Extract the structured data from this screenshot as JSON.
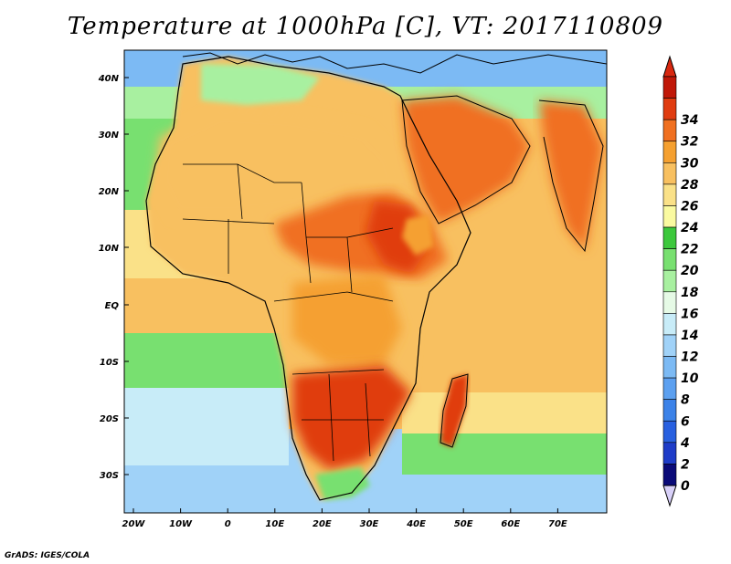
{
  "title": "Temperature at 1000hPa [C], VT: 2017110809",
  "credit": "GrADS: IGES/COLA",
  "map_data": {
    "variable": "Temperature",
    "level": "1000hPa",
    "units": "C",
    "valid_time": "2017110809",
    "lon_ticks": [
      "20W",
      "10W",
      "0",
      "10E",
      "20E",
      "30E",
      "40E",
      "50E",
      "60E",
      "70E"
    ],
    "lat_ticks": [
      "40N",
      "30N",
      "20N",
      "10N",
      "EQ",
      "10S",
      "20S",
      "30S"
    ],
    "colorbar": {
      "values": [
        "0",
        "2",
        "4",
        "6",
        "8",
        "10",
        "12",
        "14",
        "16",
        "18",
        "20",
        "22",
        "24",
        "26",
        "28",
        "30",
        "32",
        "34"
      ],
      "colors": [
        "#0a0a78",
        "#1e3cc8",
        "#2860e0",
        "#3c82e8",
        "#5ca0f0",
        "#7cbaf4",
        "#a0d2f8",
        "#c8ecf8",
        "#e6fae6",
        "#a8f0a0",
        "#78e070",
        "#3cc83c",
        "#fafaa0",
        "#fae188",
        "#f8c060",
        "#f5a030",
        "#f07020",
        "#e03c10",
        "#c01808"
      ],
      "under_color": "#d8d0f8",
      "over_color": "#d82810"
    },
    "region_colors": {
      "ocean_south_cool": "#a0d2f8",
      "ocean_south_mild": "#c8ecf8",
      "ocean_tropical": "#f8c060",
      "ocean_temperate": "#78e070",
      "mediterranean": "#7cbaf4",
      "sahara": "#f8c060",
      "sahel_hot": "#f07020",
      "east_africa_hot": "#e03c10",
      "southern_africa_hot": "#e03c10",
      "arabia": "#f07020",
      "ethiopian_highlands": "#f5a030",
      "india": "#f07020",
      "atlas_cool": "#a8f0a0",
      "south_cape": "#78e070"
    }
  }
}
